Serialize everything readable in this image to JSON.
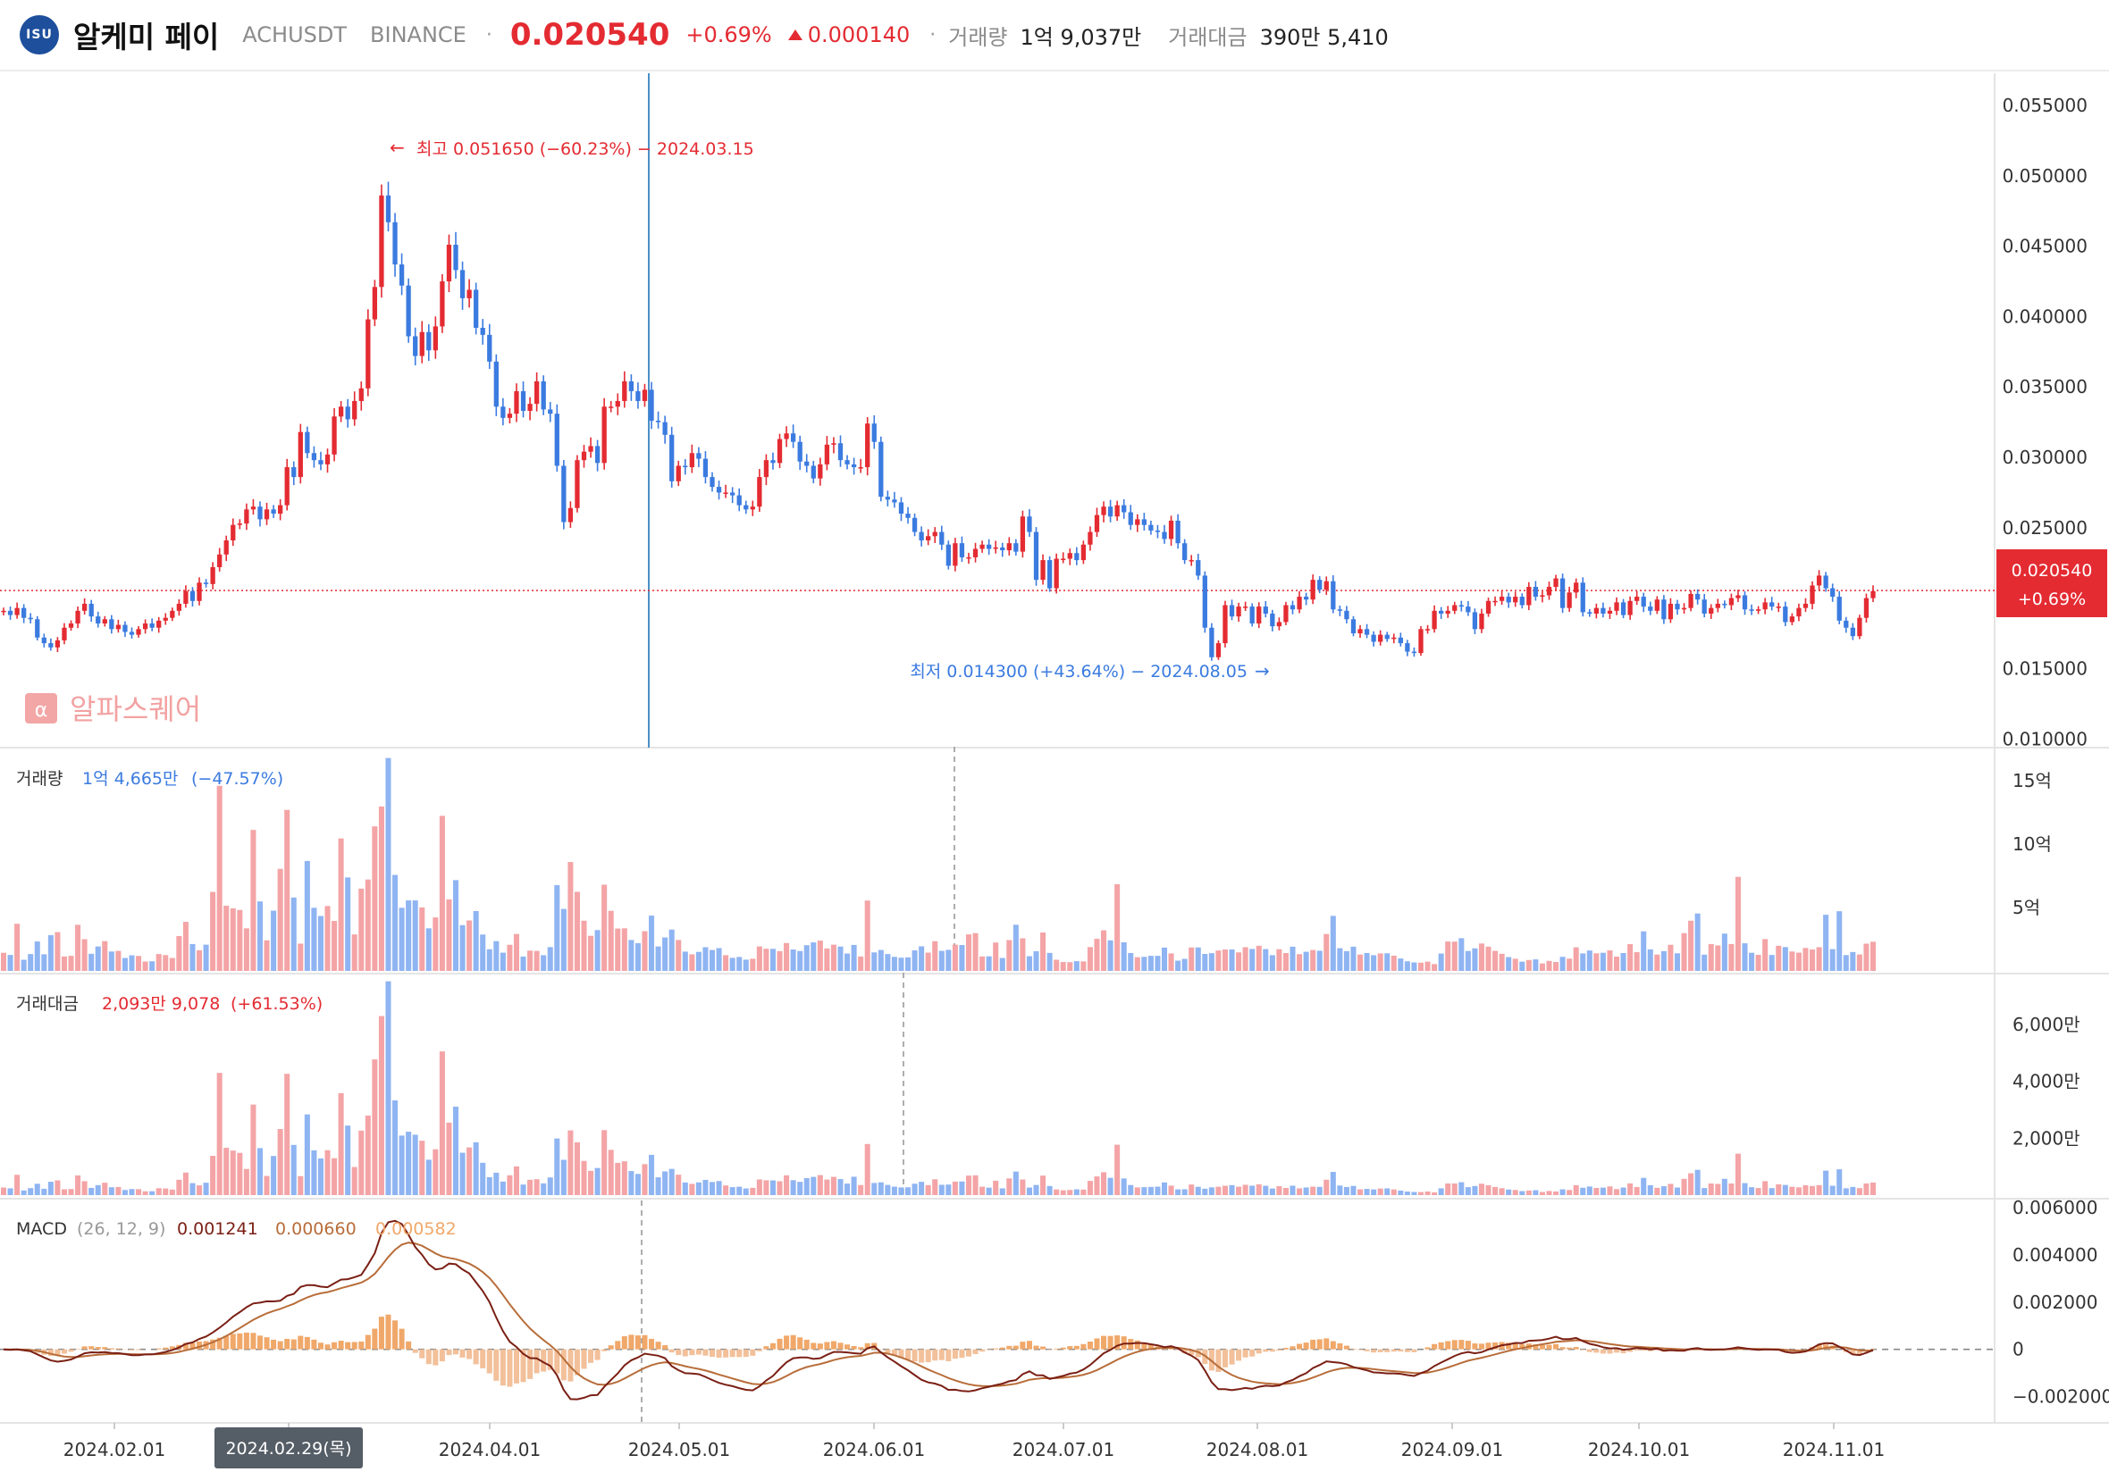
{
  "header": {
    "logo_text": "ISU",
    "name": "알케미 페이",
    "symbol": "ACHUSDT",
    "exchange": "BINANCE",
    "price": "0.020540",
    "change_pct": "+0.69%",
    "change_abs": "0.000140",
    "volume_label": "거래량",
    "volume_value": "1억 9,037만",
    "amount_label": "거래대금",
    "amount_value": "390만 5,410",
    "colors": {
      "up": "#e42b32",
      "down": "#3b7be0",
      "accent": "#1d4f9c"
    }
  },
  "chart_data": [
    {
      "type": "candlestick",
      "title": "",
      "watermark": "알파스퀘어",
      "x_ticks": [
        "2024.02.01",
        "2024.03.01",
        "2024.04.01",
        "2024.05.01",
        "2024.06.01",
        "2024.07.01",
        "2024.08.01",
        "2024.09.01",
        "2024.10.01",
        "2024.11.01"
      ],
      "crosshair_date": "2024.02.29(목)",
      "y_ticks": [
        "0.055000",
        "0.050000",
        "0.045000",
        "0.040000",
        "0.035000",
        "0.030000",
        "0.025000",
        "0.015000",
        "0.010000"
      ],
      "ylim": [
        0.0097,
        0.0569
      ],
      "current_price_label": "0.020540",
      "current_change_label": "+0.69%",
      "high_annotation": "최고 0.051650 (−60.23%) − 2024.03.15",
      "low_annotation": "최저 0.014300 (+43.64%) − 2024.08.05",
      "closes": [
        0.0191,
        0.0188,
        0.0193,
        0.0186,
        0.0185,
        0.0172,
        0.0168,
        0.0165,
        0.017,
        0.0179,
        0.0182,
        0.0191,
        0.0196,
        0.0187,
        0.0182,
        0.0185,
        0.0178,
        0.0181,
        0.0176,
        0.0174,
        0.0178,
        0.0182,
        0.0179,
        0.0184,
        0.0186,
        0.0191,
        0.0196,
        0.0205,
        0.0198,
        0.0211,
        0.021,
        0.0222,
        0.0231,
        0.0241,
        0.0252,
        0.0253,
        0.0263,
        0.0265,
        0.0256,
        0.0263,
        0.026,
        0.0266,
        0.0293,
        0.0286,
        0.0318,
        0.0303,
        0.0298,
        0.0295,
        0.0302,
        0.0329,
        0.0336,
        0.0327,
        0.034,
        0.0349,
        0.0398,
        0.0421,
        0.0486,
        0.0467,
        0.0437,
        0.0422,
        0.0386,
        0.0372,
        0.0389,
        0.0376,
        0.0393,
        0.0425,
        0.0451,
        0.0433,
        0.0413,
        0.0419,
        0.0392,
        0.0387,
        0.0368,
        0.0336,
        0.0328,
        0.0331,
        0.0347,
        0.0333,
        0.0338,
        0.0354,
        0.0334,
        0.0331,
        0.0294,
        0.0254,
        0.0264,
        0.0298,
        0.0304,
        0.0308,
        0.0296,
        0.0336,
        0.0336,
        0.034,
        0.0354,
        0.0347,
        0.034,
        0.0348,
        0.0326,
        0.0325,
        0.0316,
        0.0283,
        0.0294,
        0.0293,
        0.0303,
        0.0299,
        0.0286,
        0.0279,
        0.0275,
        0.0275,
        0.0273,
        0.0266,
        0.0263,
        0.0265,
        0.0286,
        0.0298,
        0.0296,
        0.0313,
        0.0317,
        0.0311,
        0.0297,
        0.0294,
        0.0285,
        0.0295,
        0.0309,
        0.031,
        0.0298,
        0.0295,
        0.0293,
        0.0293,
        0.0324,
        0.0311,
        0.0272,
        0.027,
        0.0268,
        0.026,
        0.0257,
        0.0247,
        0.0241,
        0.0244,
        0.0247,
        0.0238,
        0.0223,
        0.0239,
        0.0229,
        0.0229,
        0.0235,
        0.0238,
        0.0235,
        0.0236,
        0.0234,
        0.0239,
        0.0233,
        0.0258,
        0.0247,
        0.0213,
        0.0227,
        0.0207,
        0.0228,
        0.0228,
        0.0232,
        0.0227,
        0.0238,
        0.0247,
        0.0259,
        0.0265,
        0.0258,
        0.0266,
        0.0261,
        0.0252,
        0.0256,
        0.0252,
        0.0248,
        0.0247,
        0.0242,
        0.0255,
        0.0239,
        0.0227,
        0.0227,
        0.0216,
        0.0179,
        0.0158,
        0.0168,
        0.0195,
        0.0187,
        0.0194,
        0.0194,
        0.0182,
        0.0194,
        0.0189,
        0.018,
        0.0183,
        0.0195,
        0.0192,
        0.0201,
        0.0199,
        0.0213,
        0.0206,
        0.0212,
        0.0192,
        0.0191,
        0.0185,
        0.0175,
        0.0178,
        0.0174,
        0.0169,
        0.0174,
        0.0171,
        0.0172,
        0.0168,
        0.0162,
        0.0161,
        0.0178,
        0.0178,
        0.0191,
        0.0189,
        0.0191,
        0.0195,
        0.0194,
        0.019,
        0.0178,
        0.0189,
        0.0198,
        0.0198,
        0.0201,
        0.0197,
        0.0201,
        0.0195,
        0.0208,
        0.0201,
        0.0202,
        0.0208,
        0.0214,
        0.0193,
        0.0204,
        0.0211,
        0.019,
        0.0189,
        0.0193,
        0.0189,
        0.0191,
        0.0197,
        0.0188,
        0.0198,
        0.0201,
        0.0194,
        0.0191,
        0.0199,
        0.0185,
        0.0196,
        0.0192,
        0.0193,
        0.0203,
        0.0199,
        0.0189,
        0.0193,
        0.0196,
        0.0195,
        0.02,
        0.0202,
        0.0192,
        0.0191,
        0.0192,
        0.0197,
        0.0194,
        0.0194,
        0.0183,
        0.0187,
        0.0193,
        0.0196,
        0.0209,
        0.0216,
        0.0207,
        0.0201,
        0.0184,
        0.0179,
        0.0173,
        0.0186,
        0.02,
        0.0205
      ]
    },
    {
      "type": "bar",
      "title": "거래량",
      "value_label": "1억 4,665만",
      "change_label": "(−47.57%)",
      "y_ticks": [
        "15억",
        "10억",
        "5억"
      ],
      "ylim": [
        0,
        17.4
      ],
      "unit": "억",
      "values": [
        1.43,
        1.26,
        3.72,
        0.88,
        1.33,
        2.32,
        1.31,
        2.82,
        3.06,
        1.14,
        1.19,
        3.64,
        2.5,
        1.35,
        1.93,
        2.35,
        1.53,
        1.58,
        1.02,
        1.23,
        1.18,
        0.74,
        0.76,
        1.33,
        1.25,
        1.02,
        2.75,
        3.87,
        2.12,
        1.63,
        2.07,
        6.23,
        14.6,
        5.14,
        4.94,
        4.81,
        3.36,
        11.12,
        5.48,
        2.41,
        4.75,
        8.05,
        12.7,
        5.79,
        2.15,
        8.67,
        4.98,
        4.33,
        5.12,
        3.94,
        10.45,
        7.37,
        2.88,
        6.49,
        7.21,
        11.4,
        12.97,
        16.79,
        7.57,
        4.98,
        5.56,
        5.56,
        5.01,
        3.36,
        4.22,
        12.23,
        5.64,
        7.16,
        3.61,
        3.98,
        4.72,
        2.87,
        1.71,
        2.35,
        1.44,
        2.06,
        2.91,
        1.13,
        1.6,
        1.58,
        1.24,
        1.88,
        6.77,
        4.89,
        8.59,
        6.24,
        3.96,
        2.77,
        3.22,
        6.8,
        4.74,
        3.34,
        3.36,
        2.44,
        2.19,
        3.13,
        4.36,
        1.93,
        2.64,
        3.26,
        2.44,
        1.52,
        1.31,
        1.5,
        1.87,
        1.65,
        1.8,
        1.24,
        1.03,
        1.1,
        0.89,
        0.96,
        1.93,
        1.75,
        1.74,
        1.56,
        2.2,
        1.69,
        1.57,
        2.03,
        2.25,
        2.39,
        1.77,
        2.07,
        1.92,
        1.37,
        2.05,
        1.14,
        5.55,
        1.46,
        1.65,
        1.33,
        1.11,
        1.04,
        1.07,
        1.62,
        1.94,
        1.44,
        2.34,
        1.58,
        1.66,
        2.07,
        2.04,
        2.88,
        2.98,
        1.14,
        1.15,
        2.24,
        1.02,
        2.43,
        3.64,
        2.57,
        1.16,
        1.55,
        3.03,
        1.42,
        0.88,
        0.7,
        0.69,
        0.77,
        0.75,
        1.88,
        2.53,
        3.2,
        2.41,
        6.84,
        2.26,
        1.41,
        1.08,
        1.11,
        1.19,
        1.19,
        1.84,
        1.38,
        0.81,
        0.95,
        1.85,
        1.85,
        1.34,
        1.4,
        1.61,
        1.69,
        1.69,
        1.46,
        1.87,
        1.73,
        1.98,
        1.72,
        1.24,
        1.71,
        1.41,
        1.91,
        1.32,
        1.51,
        1.65,
        1.59,
        2.91,
        4.34,
        1.79,
        1.56,
        1.91,
        1.29,
        1.41,
        1.24,
        1.38,
        1.39,
        1.2,
        0.98,
        0.76,
        0.67,
        0.65,
        0.73,
        0.54,
        1.37,
        2.32,
        2.31,
        2.58,
        1.57,
        1.78,
        2.16,
        1.91,
        1.58,
        1.35,
        1.09,
        0.96,
        0.73,
        0.86,
        0.91,
        0.59,
        0.79,
        0.7,
        1.11,
        0.97,
        1.86,
        1.38,
        1.61,
        1.39,
        1.43,
        1.62,
        1.13,
        1.41,
        2.11,
        1.48,
        3.12,
        1.7,
        1.29,
        1.56,
        2.06,
        1.39,
        2.98,
        3.96,
        4.53,
        1.28,
        2.12,
        2.01,
        2.94,
        2.12,
        7.42,
        2.18,
        1.43,
        1.27,
        2.51,
        1.26,
        1.98,
        1.88,
        1.53,
        1.44,
        1.81,
        1.69,
        1.87,
        4.43,
        1.72,
        4.71,
        1.25,
        1.49,
        1.3,
        2.15,
        2.3,
        1.89,
        6.69,
        3.36,
        2.16,
        1.51,
        1.72,
        1.5,
        2.15,
        1.82
      ]
    },
    {
      "type": "bar",
      "title": "거래대금",
      "value_label": "2,093만 9,078",
      "change_label": "(+61.53%)",
      "y_ticks": [
        "6,000만",
        "4,000만",
        "2,000만"
      ],
      "ylim": [
        0,
        7700
      ],
      "unit": "만",
      "values": [
        266,
        239,
        714,
        164,
        246,
        399,
        223,
        469,
        519,
        204,
        214,
        693,
        490,
        253,
        351,
        435,
        275,
        286,
        180,
        214,
        209,
        134,
        136,
        243,
        232,
        195,
        539,
        793,
        421,
        343,
        436,
        1382,
        4299,
        1665,
        1568,
        1486,
        920,
        3186,
        1653,
        675,
        1377,
        2325,
        4267,
        1766,
        668,
        2840,
        1575,
        1291,
        1581,
        1299,
        3588,
        2445,
        989,
        2269,
        2801,
        4774,
        6300,
        7523,
        3333,
        2095,
        2230,
        2124,
        1913,
        1245,
        1613,
        5057,
        2549,
        3111,
        1491,
        1677,
        1860,
        1137,
        630,
        788,
        476,
        698,
        1010,
        371,
        539,
        560,
        413,
        622,
        1991,
        1242,
        2276,
        1859,
        1204,
        853,
        954,
        2286,
        1592,
        1135,
        1190,
        846,
        745,
        1089,
        1416,
        627,
        834,
        922,
        718,
        445,
        397,
        448,
        535,
        461,
        495,
        341,
        281,
        294,
        234,
        255,
        552,
        522,
        517,
        488,
        697,
        525,
        466,
        597,
        641,
        704,
        547,
        642,
        565,
        405,
        646,
        355,
        1798,
        427,
        449,
        359,
        297,
        271,
        275,
        400,
        468,
        352,
        557,
        363,
        371,
        475,
        479,
        685,
        696,
        294,
        262,
        507,
        237,
        587,
        828,
        549,
        265,
        356,
        685,
        320,
        200,
        170,
        182,
        204,
        195,
        500,
        657,
        805,
        609,
        1772,
        586,
        355,
        272,
        280,
        289,
        298,
        446,
        333,
        202,
        205,
        372,
        292,
        225,
        273,
        294,
        328,
        351,
        296,
        363,
        331,
        379,
        328,
        231,
        315,
        251,
        330,
        238,
        268,
        297,
        289,
        541,
        816,
        337,
        284,
        323,
        203,
        218,
        199,
        231,
        236,
        201,
        158,
        124,
        110,
        107,
        126,
        95,
        239,
        409,
        409,
        454,
        280,
        320,
        401,
        347,
        286,
        242,
        197,
        180,
        140,
        162,
        172,
        110,
        145,
        127,
        203,
        180,
        346,
        259,
        303,
        253,
        263,
        305,
        211,
        266,
        413,
        285,
        607,
        348,
        256,
        313,
        396,
        267,
        572,
        767,
        890,
        248,
        410,
        393,
        572,
        409,
        1458,
        422,
        278,
        249,
        491,
        246,
        380,
        357,
        294,
        274,
        348,
        321,
        352,
        861,
        329,
        909,
        240,
        287,
        246,
        411,
        442,
        369,
        1264,
        622,
        376,
        262,
        290,
        259,
        386,
        336
      ]
    },
    {
      "type": "line",
      "title": "MACD",
      "params": "(26, 12, 9)",
      "macd_label": "0.001241",
      "signal_label": "0.000660",
      "hist_label": "0.000582",
      "y_ticks": [
        "0.006000",
        "0.004000",
        "0.002000",
        "0",
        "−0.002000"
      ],
      "ylim": [
        -0.003,
        0.006
      ],
      "colors": {
        "macd": "#7a1f14",
        "signal": "#b86d3a",
        "hist": "#f0a86a"
      }
    }
  ]
}
